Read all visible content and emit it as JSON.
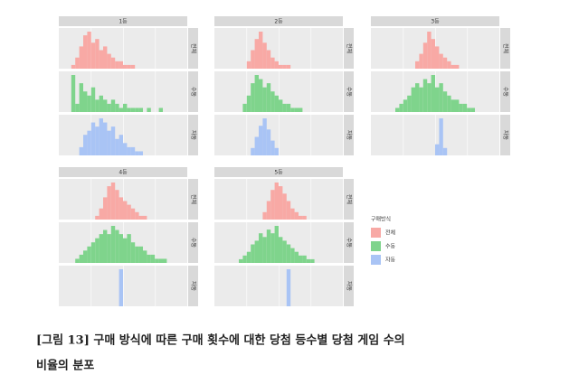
{
  "chart_data": [
    {
      "type": "bar",
      "title": "1등",
      "facets": [
        {
          "label": "전체",
          "color": "#f8a9a5",
          "values": [
            0,
            0,
            1,
            3,
            6,
            9,
            10,
            7,
            8,
            5,
            6,
            4,
            3,
            2,
            2,
            1,
            1,
            1,
            0,
            0,
            0,
            0,
            0,
            0,
            0,
            0,
            0,
            0,
            0,
            0
          ]
        },
        {
          "label": "수동",
          "color": "#7fd48c",
          "values": [
            0,
            0,
            9,
            2,
            7,
            5,
            4,
            6,
            3,
            4,
            3,
            2,
            3,
            2,
            1,
            2,
            1,
            1,
            1,
            1,
            0,
            1,
            0,
            0,
            1,
            0,
            0,
            0,
            0,
            0
          ]
        },
        {
          "label": "자동",
          "color": "#a9c4f5",
          "values": [
            0,
            0,
            0,
            0,
            2,
            5,
            6,
            8,
            7,
            9,
            8,
            6,
            7,
            4,
            5,
            3,
            2,
            2,
            1,
            1,
            0,
            0,
            0,
            0,
            0,
            0,
            0,
            0,
            0,
            0
          ]
        }
      ]
    },
    {
      "type": "bar",
      "title": "2등",
      "facets": [
        {
          "label": "전체",
          "color": "#f8a9a5",
          "values": [
            0,
            0,
            0,
            0,
            0,
            0,
            0,
            2,
            5,
            8,
            10,
            7,
            5,
            3,
            2,
            1,
            1,
            1,
            0,
            0,
            0,
            0,
            0,
            0,
            0,
            0,
            0,
            0,
            0,
            0
          ]
        },
        {
          "label": "수동",
          "color": "#7fd48c",
          "values": [
            0,
            0,
            0,
            0,
            0,
            0,
            2,
            4,
            7,
            9,
            8,
            6,
            7,
            5,
            4,
            3,
            2,
            2,
            1,
            1,
            1,
            0,
            0,
            0,
            0,
            0,
            0,
            0,
            0,
            0
          ]
        },
        {
          "label": "자동",
          "color": "#a9c4f5",
          "values": [
            0,
            0,
            0,
            0,
            0,
            0,
            0,
            0,
            2,
            5,
            8,
            10,
            7,
            4,
            2,
            0,
            0,
            0,
            0,
            0,
            0,
            0,
            0,
            0,
            0,
            0,
            0,
            0,
            0,
            0
          ]
        }
      ]
    },
    {
      "type": "bar",
      "title": "3등",
      "facets": [
        {
          "label": "전체",
          "color": "#f8a9a5",
          "values": [
            0,
            0,
            0,
            0,
            0,
            0,
            0,
            0,
            0,
            0,
            2,
            4,
            7,
            10,
            8,
            6,
            4,
            3,
            2,
            1,
            1,
            0,
            0,
            0,
            0,
            0,
            0,
            0,
            0,
            0
          ]
        },
        {
          "label": "수동",
          "color": "#7fd48c",
          "values": [
            0,
            0,
            0,
            0,
            0,
            1,
            2,
            3,
            4,
            6,
            7,
            6,
            8,
            7,
            9,
            6,
            7,
            5,
            4,
            3,
            3,
            2,
            2,
            1,
            1,
            0,
            0,
            0,
            0,
            0
          ]
        },
        {
          "label": "자동",
          "color": "#a9c4f5",
          "values": [
            0,
            0,
            0,
            0,
            0,
            0,
            0,
            0,
            0,
            0,
            0,
            0,
            0,
            0,
            0,
            3,
            10,
            2,
            0,
            0,
            0,
            0,
            0,
            0,
            0,
            0,
            0,
            0,
            0,
            0
          ]
        }
      ]
    },
    {
      "type": "bar",
      "title": "4등",
      "facets": [
        {
          "label": "전체",
          "color": "#f8a9a5",
          "values": [
            0,
            0,
            0,
            0,
            0,
            0,
            0,
            0,
            1,
            3,
            6,
            9,
            10,
            8,
            6,
            5,
            4,
            3,
            2,
            1,
            1,
            0,
            0,
            0,
            0,
            0,
            0,
            0,
            0,
            0
          ]
        },
        {
          "label": "수동",
          "color": "#7fd48c",
          "values": [
            0,
            0,
            0,
            1,
            2,
            3,
            4,
            5,
            6,
            7,
            8,
            7,
            9,
            8,
            7,
            6,
            7,
            5,
            4,
            4,
            3,
            2,
            2,
            1,
            1,
            1,
            0,
            0,
            0,
            0
          ]
        },
        {
          "label": "자동",
          "color": "#a9c4f5",
          "values": [
            0,
            0,
            0,
            0,
            0,
            0,
            0,
            0,
            0,
            0,
            0,
            0,
            0,
            0,
            10,
            0,
            0,
            0,
            0,
            0,
            0,
            0,
            0,
            0,
            0,
            0,
            0,
            0,
            0,
            0
          ]
        }
      ]
    },
    {
      "type": "bar",
      "title": "5등",
      "facets": [
        {
          "label": "전체",
          "color": "#f8a9a5",
          "values": [
            0,
            0,
            0,
            0,
            0,
            0,
            0,
            0,
            0,
            0,
            0,
            2,
            5,
            8,
            10,
            9,
            7,
            5,
            3,
            2,
            1,
            1,
            0,
            0,
            0,
            0,
            0,
            0,
            0,
            0
          ]
        },
        {
          "label": "수동",
          "color": "#7fd48c",
          "values": [
            0,
            0,
            0,
            0,
            0,
            1,
            2,
            3,
            5,
            6,
            8,
            7,
            9,
            8,
            10,
            7,
            6,
            5,
            4,
            3,
            2,
            2,
            1,
            1,
            0,
            0,
            0,
            0,
            0,
            0
          ]
        },
        {
          "label": "자동",
          "color": "#a9c4f5",
          "values": [
            0,
            0,
            0,
            0,
            0,
            0,
            0,
            0,
            0,
            0,
            0,
            0,
            0,
            0,
            0,
            0,
            0,
            10,
            0,
            0,
            0,
            0,
            0,
            0,
            0,
            0,
            0,
            0,
            0,
            0
          ]
        }
      ]
    }
  ],
  "legend": {
    "title": "구매방식",
    "items": [
      {
        "name": "전체",
        "color": "#f8a9a5"
      },
      {
        "name": "수동",
        "color": "#7fd48c"
      },
      {
        "name": "자동",
        "color": "#a9c4f5"
      }
    ]
  },
  "caption": [
    "[그림 13] 구매 방식에 따른 구매 횟수에 대한 당첨 등수별 당첨 게임 수의",
    "비율의 분포"
  ]
}
